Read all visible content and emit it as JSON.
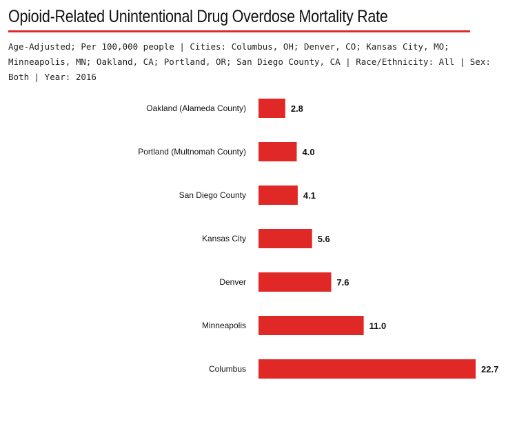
{
  "colors": {
    "accent": "#e02926",
    "bar": "#e02926",
    "text": "#111111"
  },
  "chart_data": {
    "type": "bar",
    "orientation": "horizontal",
    "title": "Opioid-Related Unintentional Drug Overdose Mortality Rate",
    "subtitle": "Age-Adjusted; Per 100,000 people | Cities: Columbus, OH; Denver, CO; Kansas City, MO; Minneapolis, MN; Oakland, CA; Portland, OR; San Diego County, CA | Race/Ethnicity: All | Sex: Both | Year: 2016",
    "categories": [
      "Oakland (Alameda County)",
      "Portland (Multnomah County)",
      "San Diego County",
      "Kansas City",
      "Denver",
      "Minneapolis",
      "Columbus"
    ],
    "values": [
      2.8,
      4.0,
      4.1,
      5.6,
      7.6,
      11.0,
      22.7
    ],
    "value_labels": [
      "2.8",
      "4.0",
      "4.1",
      "5.6",
      "7.6",
      "11.0",
      "22.7"
    ],
    "xlim": [
      0,
      22.7
    ],
    "grid": false,
    "xlabel": "",
    "ylabel": ""
  }
}
